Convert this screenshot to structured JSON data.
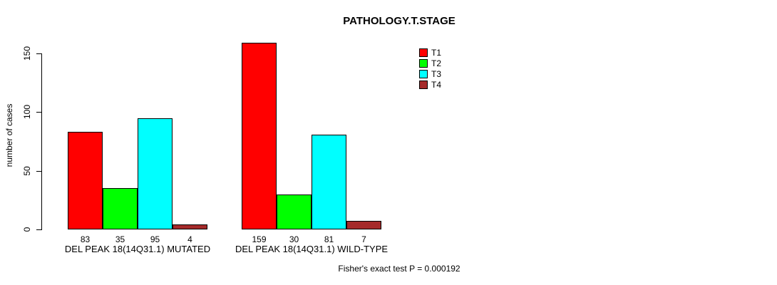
{
  "title": "PATHOLOGY.T.STAGE",
  "ylabel": "number of cases",
  "annotation": "Fisher's exact test P = 0.000192",
  "legend": {
    "items": [
      {
        "label": "T1",
        "color": "#FF0000"
      },
      {
        "label": "T2",
        "color": "#00FF00"
      },
      {
        "label": "T3",
        "color": "#00FFFF"
      },
      {
        "label": "T4",
        "color": "#A52A2A"
      }
    ]
  },
  "chart_data": {
    "type": "bar",
    "title": "PATHOLOGY.T.STAGE",
    "xlabel": "",
    "ylabel": "number of cases",
    "ylim": [
      0,
      160
    ],
    "yticks": [
      0,
      50,
      100,
      150
    ],
    "grid": false,
    "legend_position": "top-right-inside",
    "categories": [
      "DEL PEAK 18(14Q31.1) MUTATED",
      "DEL PEAK 18(14Q31.1) WILD-TYPE"
    ],
    "series": [
      {
        "name": "T1",
        "color": "#FF0000",
        "values": [
          83,
          159
        ]
      },
      {
        "name": "T2",
        "color": "#00FF00",
        "values": [
          35,
          30
        ]
      },
      {
        "name": "T3",
        "color": "#00FFFF",
        "values": [
          95,
          81
        ]
      },
      {
        "name": "T4",
        "color": "#A52A2A",
        "values": [
          4,
          7
        ]
      }
    ],
    "bar_value_labels": [
      [
        83,
        35,
        95,
        4
      ],
      [
        159,
        30,
        81,
        7
      ]
    ],
    "annotation": "Fisher's exact test P = 0.000192"
  }
}
